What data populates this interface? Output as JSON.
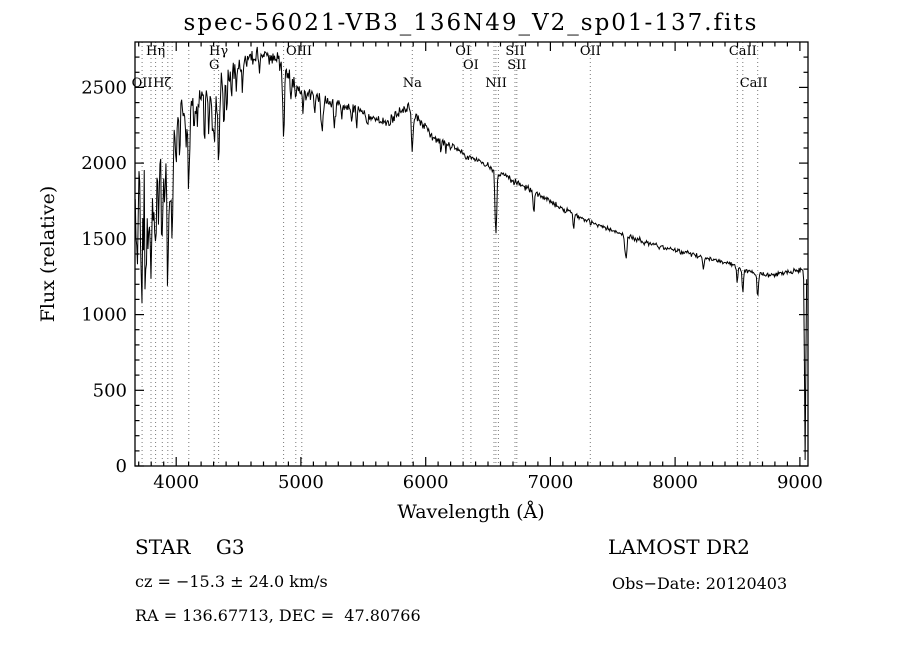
{
  "title": "spec-56021-VB3_136N49_V2_sp01-137.fits",
  "footer": {
    "class_label": "STAR    G3",
    "survey": "LAMOST DR2",
    "cz": "cz = −15.3 ± 24.0 km/s",
    "obs_date": "Obs−Date: 20120403",
    "coords": "RA = 136.67713, DEC =  47.80766"
  },
  "chart_data": {
    "type": "line",
    "title": "spec-56021-VB3_136N49_V2_sp01-137.fits",
    "xlabel": "Wavelength (Å)",
    "ylabel": "Flux (relative)",
    "xlim": [
      3670,
      9065
    ],
    "ylim": [
      0,
      2800
    ],
    "xticks": [
      4000,
      5000,
      6000,
      7000,
      8000,
      9000
    ],
    "yticks": [
      0,
      500,
      1000,
      1500,
      2000,
      2500
    ],
    "grid": false,
    "line_color": "#000000",
    "annotations": [
      {
        "label": "OII",
        "wavelength": 3727,
        "row": 2
      },
      {
        "label": "Hη",
        "wavelength": 3835,
        "row": 0
      },
      {
        "label": "Hζ",
        "wavelength": 3889,
        "row": 2
      },
      {
        "label": "G",
        "wavelength": 4305,
        "row": 1
      },
      {
        "label": "Hγ",
        "wavelength": 4340,
        "row": 0
      },
      {
        "label": "OIII",
        "wavelength": 4985,
        "row": 0
      },
      {
        "label": "Na",
        "wavelength": 5893,
        "row": 2
      },
      {
        "label": "OI",
        "wavelength": 6300,
        "row": 0
      },
      {
        "label": "OI",
        "wavelength": 6363,
        "row": 1
      },
      {
        "label": "NII",
        "wavelength": 6565,
        "row": 2
      },
      {
        "label": "SII",
        "wavelength": 6716,
        "row": 0
      },
      {
        "label": "SII",
        "wavelength": 6731,
        "row": 1
      },
      {
        "label": "OII",
        "wavelength": 7320,
        "row": 0
      },
      {
        "label": "CaII",
        "wavelength": 8542,
        "row": 0
      },
      {
        "label": "CaII",
        "wavelength": 8630,
        "row": 2
      }
    ],
    "dotted_lines": [
      3727,
      3798,
      3835,
      3889,
      3933,
      3968,
      4101,
      4305,
      4340,
      4861,
      4959,
      5007,
      5893,
      6300,
      6363,
      6548,
      6563,
      6583,
      6716,
      6731,
      7320,
      8498,
      8542,
      8662
    ],
    "continuum": [
      [
        3700,
        1520
      ],
      [
        3760,
        1750
      ],
      [
        3820,
        1980
      ],
      [
        3880,
        2120
      ],
      [
        3940,
        2190
      ],
      [
        4000,
        2300
      ],
      [
        4100,
        2380
      ],
      [
        4200,
        2420
      ],
      [
        4300,
        2450
      ],
      [
        4400,
        2550
      ],
      [
        4500,
        2630
      ],
      [
        4600,
        2690
      ],
      [
        4700,
        2730
      ],
      [
        4800,
        2700
      ],
      [
        4900,
        2580
      ],
      [
        5000,
        2480
      ],
      [
        5100,
        2440
      ],
      [
        5200,
        2410
      ],
      [
        5300,
        2385
      ],
      [
        5400,
        2360
      ],
      [
        5500,
        2330
      ],
      [
        5600,
        2290
      ],
      [
        5700,
        2260
      ],
      [
        5790,
        2340
      ],
      [
        5870,
        2380
      ],
      [
        5950,
        2280
      ],
      [
        6050,
        2180
      ],
      [
        6150,
        2140
      ],
      [
        6250,
        2090
      ],
      [
        6350,
        2040
      ],
      [
        6450,
        2000
      ],
      [
        6550,
        1960
      ],
      [
        6650,
        1910
      ],
      [
        6750,
        1860
      ],
      [
        6850,
        1820
      ],
      [
        6950,
        1770
      ],
      [
        7050,
        1720
      ],
      [
        7150,
        1680
      ],
      [
        7250,
        1640
      ],
      [
        7350,
        1600
      ],
      [
        7450,
        1570
      ],
      [
        7550,
        1540
      ],
      [
        7650,
        1510
      ],
      [
        7750,
        1480
      ],
      [
        7850,
        1455
      ],
      [
        7950,
        1435
      ],
      [
        8050,
        1415
      ],
      [
        8150,
        1395
      ],
      [
        8250,
        1375
      ],
      [
        8350,
        1355
      ],
      [
        8450,
        1330
      ],
      [
        8550,
        1300
      ],
      [
        8650,
        1270
      ],
      [
        8750,
        1260
      ],
      [
        8850,
        1270
      ],
      [
        8950,
        1285
      ],
      [
        9060,
        1305
      ]
    ],
    "absorption_features": [
      [
        3706,
        4,
        -880
      ],
      [
        3712,
        8,
        330
      ],
      [
        3727,
        6,
        300
      ],
      [
        3745,
        3,
        -550
      ],
      [
        3750,
        7,
        480
      ],
      [
        3771,
        6,
        420
      ],
      [
        3798,
        7,
        560
      ],
      [
        3820,
        5,
        320
      ],
      [
        3835,
        7,
        600
      ],
      [
        3860,
        5,
        360
      ],
      [
        3889,
        7,
        700
      ],
      [
        3910,
        5,
        380
      ],
      [
        3933,
        7,
        1000
      ],
      [
        3950,
        5,
        420
      ],
      [
        3968,
        7,
        820
      ],
      [
        4000,
        5,
        300
      ],
      [
        4026,
        5,
        260
      ],
      [
        4077,
        4,
        260
      ],
      [
        4101,
        7,
        500
      ],
      [
        4144,
        5,
        230
      ],
      [
        4172,
        4,
        200
      ],
      [
        4226,
        5,
        280
      ],
      [
        4260,
        4,
        230
      ],
      [
        4290,
        5,
        240
      ],
      [
        4305,
        6,
        300
      ],
      [
        4340,
        7,
        480
      ],
      [
        4383,
        5,
        300
      ],
      [
        4404,
        4,
        230
      ],
      [
        4444,
        4,
        160
      ],
      [
        4481,
        4,
        160
      ],
      [
        4531,
        4,
        130
      ],
      [
        4668,
        4,
        130
      ],
      [
        4861,
        7,
        430
      ],
      [
        4920,
        4,
        130
      ],
      [
        4957,
        4,
        110
      ],
      [
        5015,
        4,
        120
      ],
      [
        5110,
        5,
        130
      ],
      [
        5170,
        8,
        220
      ],
      [
        5270,
        6,
        160
      ],
      [
        5328,
        4,
        120
      ],
      [
        5406,
        4,
        100
      ],
      [
        5446,
        4,
        95
      ],
      [
        5535,
        4,
        90
      ],
      [
        5893,
        8,
        260
      ],
      [
        6122,
        4,
        80
      ],
      [
        6162,
        4,
        80
      ],
      [
        6563,
        7,
        420
      ],
      [
        6867,
        6,
        130
      ],
      [
        7186,
        6,
        90
      ],
      [
        7605,
        8,
        150
      ],
      [
        8226,
        5,
        80
      ],
      [
        8498,
        5,
        110
      ],
      [
        8542,
        6,
        160
      ],
      [
        8662,
        6,
        150
      ],
      [
        9042,
        5,
        1260
      ]
    ],
    "noise_profile": [
      [
        3700,
        330
      ],
      [
        3800,
        260
      ],
      [
        3900,
        210
      ],
      [
        4000,
        160
      ],
      [
        4200,
        130
      ],
      [
        4400,
        110
      ],
      [
        4600,
        85
      ],
      [
        4800,
        70
      ],
      [
        5000,
        60
      ],
      [
        5300,
        50
      ],
      [
        5600,
        45
      ],
      [
        6000,
        38
      ],
      [
        6400,
        32
      ],
      [
        6800,
        26
      ],
      [
        7200,
        24
      ],
      [
        7600,
        22
      ],
      [
        8000,
        20
      ],
      [
        8400,
        19
      ],
      [
        8800,
        20
      ],
      [
        9060,
        22
      ]
    ],
    "noise_seed": 1371,
    "sample_step": 6
  }
}
